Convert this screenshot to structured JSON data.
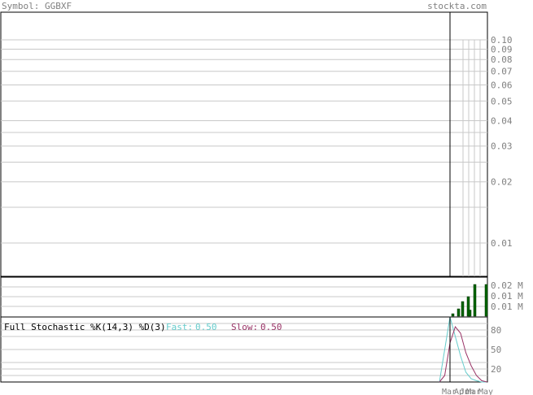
{
  "header": {
    "symbol_label": "Symbol: GGBXF",
    "site": "stockta.com"
  },
  "colors": {
    "text_gray": "#808080",
    "volume_bar": "#006400",
    "fast_line": "#66cccc",
    "slow_line": "#993366",
    "grid": "#c8c8c8"
  },
  "price_panel": {
    "scale": "log",
    "ticks": [
      "0.10",
      "0.09",
      "0.08",
      "0.07",
      "0.06",
      "0.05",
      "0.04",
      "0.03",
      "0.02",
      "0.01"
    ]
  },
  "volume_panel": {
    "ticks": [
      "0.02 M",
      "0.01 M",
      "0.01 M"
    ]
  },
  "stochastic_panel": {
    "title": "Full Stochastic %K(14,3) %D(3)",
    "fast_label": "Fast:",
    "fast_value": "0.50",
    "slow_label": "Slow:",
    "slow_value": "0.50",
    "ticks": [
      "80",
      "50",
      "20"
    ]
  },
  "x_axis": {
    "months": [
      "Mar",
      "Apr",
      "Jun",
      "Mar",
      "May"
    ]
  },
  "chart_data": [
    {
      "type": "line",
      "title": "",
      "yscale": "log",
      "ylim": [
        0.005,
        0.1
      ],
      "series": []
    },
    {
      "type": "bar",
      "title": "",
      "values_m": [
        0.002,
        0.006,
        0.012,
        0.016,
        0.005,
        0.026,
        0.0,
        0.026
      ],
      "ylabel": "M"
    },
    {
      "type": "line",
      "title": "Full Stochastic %K(14,3) %D(3)",
      "ylim": [
        0,
        100
      ],
      "series": [
        {
          "name": "Fast",
          "values": [
            0,
            50,
            100,
            70,
            40,
            15,
            5,
            2,
            0,
            0
          ]
        },
        {
          "name": "Slow",
          "values": [
            0,
            10,
            60,
            85,
            75,
            45,
            25,
            10,
            2,
            0
          ]
        }
      ]
    }
  ]
}
